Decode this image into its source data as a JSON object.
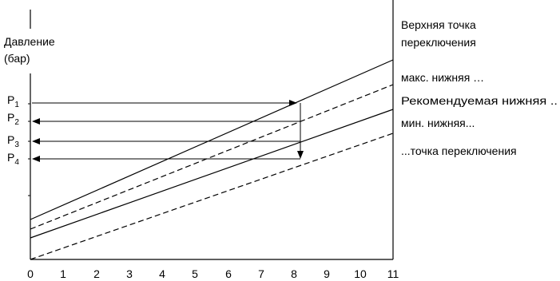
{
  "diagram": {
    "y_axis_label_line1": "Давление",
    "y_axis_label_line2": "(бар)",
    "x_ticks": [
      "0",
      "1",
      "2",
      "3",
      "4",
      "5",
      "6",
      "7",
      "8",
      "9",
      "10",
      "11"
    ],
    "pressure_labels": [
      {
        "main": "P",
        "sub": "1"
      },
      {
        "main": "P",
        "sub": "2"
      },
      {
        "main": "P",
        "sub": "3"
      },
      {
        "main": "P",
        "sub": "4"
      }
    ],
    "line_labels": {
      "upper_line1": "Верхняя точка",
      "upper_line2": "переключения",
      "max_lower": "макс. нижняя …",
      "recommended_lower": "Рекомендуемая нижняя ..",
      "min_lower": "мин. нижняя...",
      "switch_point": "...точка переключения"
    },
    "colors": {
      "line": "#000000",
      "background": "#ffffff"
    }
  }
}
